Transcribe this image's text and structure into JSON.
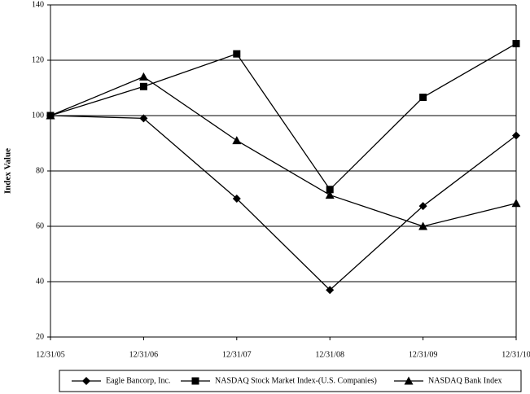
{
  "chart_data": {
    "type": "line",
    "y_label": "Index Value",
    "categories": [
      "12/31/05",
      "12/31/06",
      "12/31/07",
      "12/31/08",
      "12/31/09",
      "12/31/10"
    ],
    "series": [
      {
        "name": "Eagle Bancorp, Inc.",
        "color": "#000000",
        "marker": "diamond",
        "values": [
          100,
          99,
          70,
          37,
          67.3,
          92.8
        ]
      },
      {
        "name": "NASDAQ Stock Market Index-(U.S. Companies)",
        "color": "#000000",
        "marker": "square",
        "values": [
          100,
          110.5,
          122.3,
          73.3,
          106.6,
          126
        ]
      },
      {
        "name": "NASDAQ Bank Index",
        "color": "#000000",
        "marker": "triangle",
        "values": [
          100,
          114,
          91,
          71.3,
          60,
          68.3
        ]
      }
    ],
    "ylim": [
      20,
      140
    ],
    "yticks": [
      20,
      40,
      60,
      80,
      100,
      120,
      140
    ],
    "grid": true,
    "legend": "bottom"
  }
}
